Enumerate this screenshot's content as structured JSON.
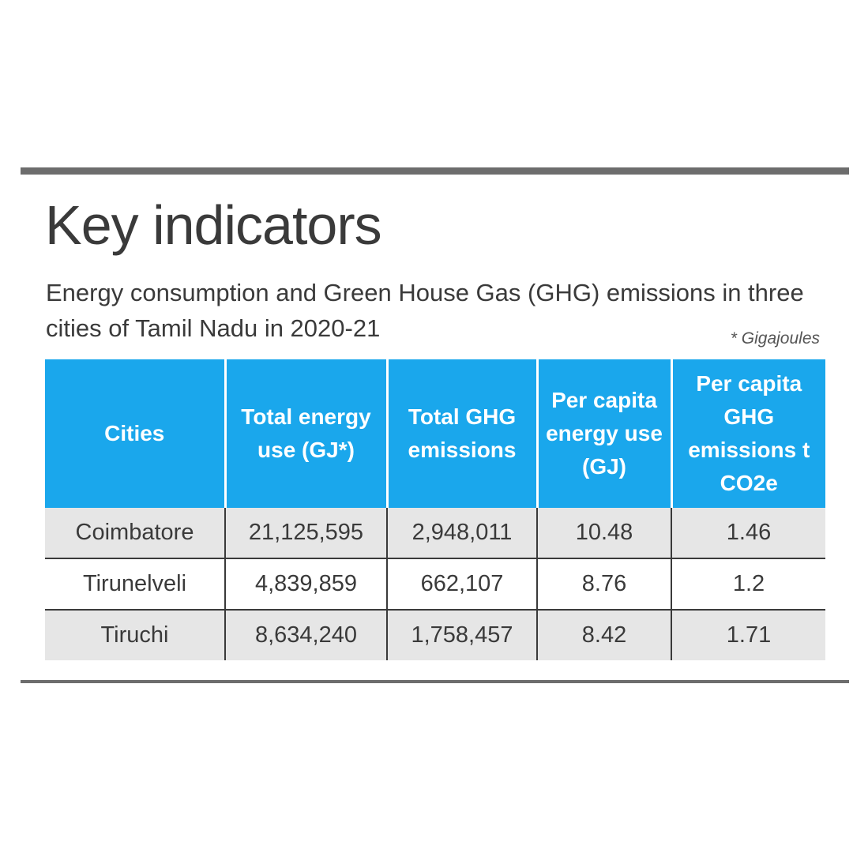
{
  "title": "Key indicators",
  "subtitle": "Energy consumption and Green House Gas (GHG) emissions in three cities of Tamil Nadu in 2020-21",
  "note": "* Gigajoules",
  "chart_data": {
    "type": "table",
    "columns": [
      "Cities",
      "Total energy use (GJ*)",
      "Total GHG emissions",
      "Per capita energy use (GJ)",
      "Per capita GHG emissions t CO2e"
    ],
    "rows": [
      [
        "Coimbatore",
        "21,125,595",
        "2,948,011",
        "10.48",
        "1.46"
      ],
      [
        "Tirunelveli",
        "4,839,859",
        "662,107",
        "8.76",
        "1.2"
      ],
      [
        "Tiruchi",
        "8,634,240",
        "1,758,457",
        "8.42",
        "1.71"
      ]
    ]
  },
  "colors": {
    "header_bg": "#1aa7ec",
    "header_text": "#ffffff",
    "shaded_row": "#e6e6e6",
    "rule": "#6d6d6d"
  }
}
